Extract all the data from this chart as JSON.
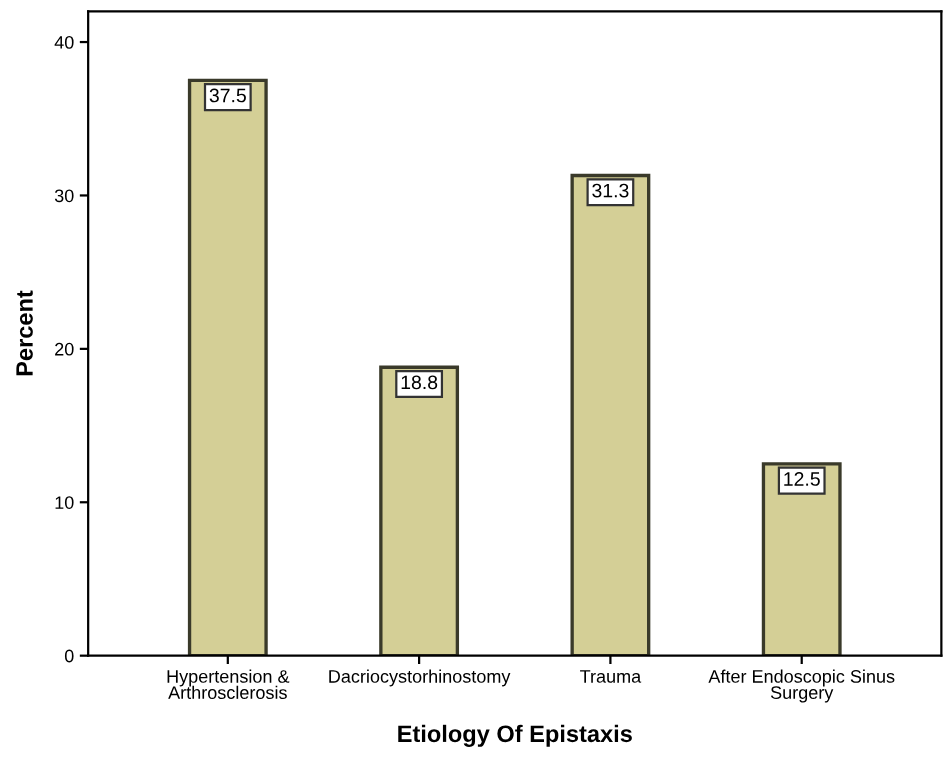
{
  "chart_data": {
    "type": "bar",
    "xlabel": "Etiology Of Epistaxis",
    "ylabel": "Percent",
    "categories": [
      "Hypertension &\nArthrosclerosis",
      "Dacriocystorhinostomy",
      "Trauma",
      "After Endoscopic Sinus\nSurgery"
    ],
    "values": [
      37.5,
      18.8,
      31.3,
      12.5
    ],
    "color": "#d4cf96",
    "data_labels": true,
    "ylim": [
      0,
      42
    ],
    "yticks": [
      0,
      10,
      20,
      30,
      40
    ],
    "grid": false
  }
}
